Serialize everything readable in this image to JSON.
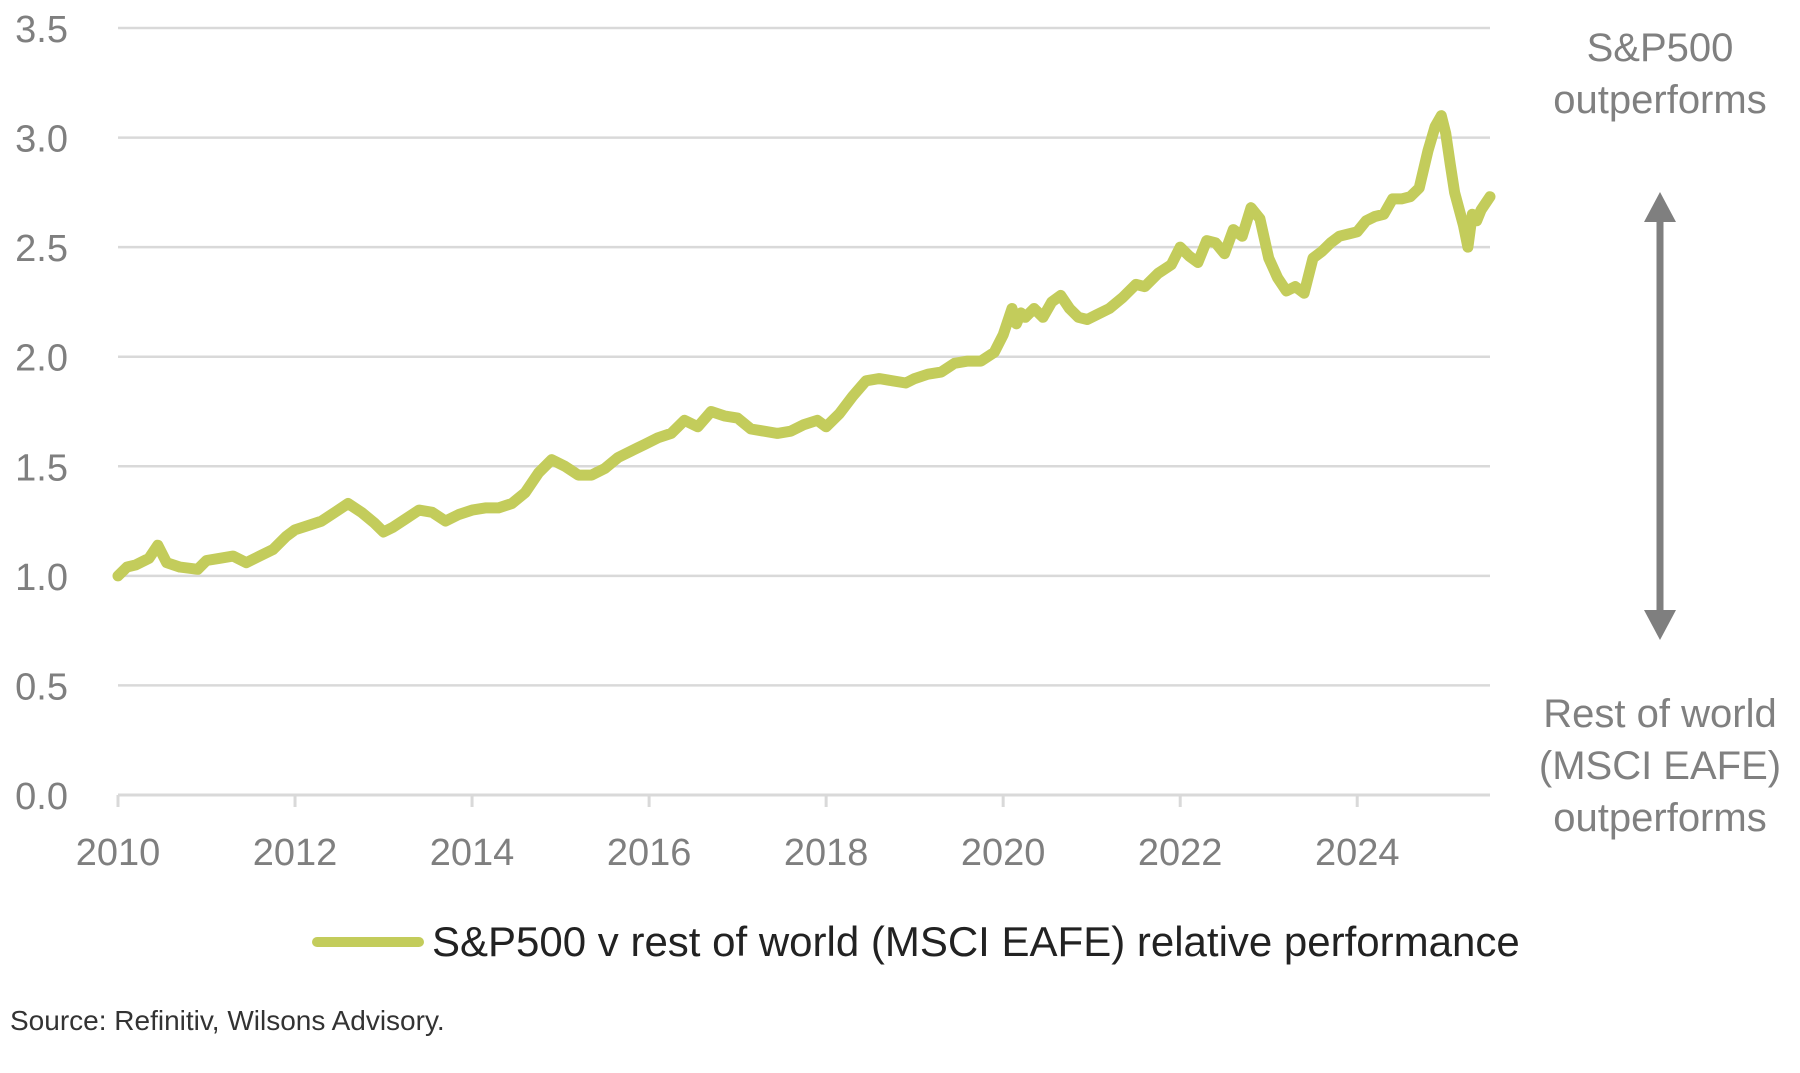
{
  "chart_data": {
    "type": "line",
    "title": "",
    "xlabel": "",
    "ylabel": "",
    "x_ticks": [
      "2010",
      "2012",
      "2014",
      "2016",
      "2018",
      "2020",
      "2022",
      "2024"
    ],
    "y_ticks": [
      "0.0",
      "0.5",
      "1.0",
      "1.5",
      "2.0",
      "2.5",
      "3.0",
      "3.5"
    ],
    "xlim": [
      2010,
      2025.5
    ],
    "ylim": [
      0,
      3.5
    ],
    "grid": "horizontal",
    "legend_position": "bottom",
    "series": [
      {
        "name": "S&P500 v rest of world (MSCI EAFE) relative performance",
        "color": "#c3cc5b",
        "x": [
          2010.0,
          2010.1,
          2010.2,
          2010.35,
          2010.45,
          2010.55,
          2010.7,
          2010.9,
          2011.0,
          2011.15,
          2011.3,
          2011.45,
          2011.6,
          2011.75,
          2011.9,
          2012.0,
          2012.15,
          2012.3,
          2012.45,
          2012.6,
          2012.75,
          2012.9,
          2013.0,
          2013.1,
          2013.25,
          2013.4,
          2013.55,
          2013.7,
          2013.85,
          2014.0,
          2014.15,
          2014.3,
          2014.45,
          2014.6,
          2014.75,
          2014.9,
          2015.05,
          2015.2,
          2015.35,
          2015.5,
          2015.65,
          2015.8,
          2015.95,
          2016.1,
          2016.25,
          2016.4,
          2016.55,
          2016.7,
          2016.85,
          2017.0,
          2017.15,
          2017.3,
          2017.45,
          2017.6,
          2017.75,
          2017.9,
          2018.0,
          2018.15,
          2018.3,
          2018.45,
          2018.6,
          2018.75,
          2018.9,
          2019.0,
          2019.15,
          2019.3,
          2019.45,
          2019.6,
          2019.75,
          2019.9,
          2020.0,
          2020.1,
          2020.15,
          2020.2,
          2020.25,
          2020.35,
          2020.45,
          2020.55,
          2020.65,
          2020.75,
          2020.85,
          2020.95,
          2021.05,
          2021.2,
          2021.35,
          2021.5,
          2021.6,
          2021.75,
          2021.9,
          2022.0,
          2022.1,
          2022.2,
          2022.3,
          2022.4,
          2022.5,
          2022.6,
          2022.7,
          2022.8,
          2022.9,
          2023.0,
          2023.1,
          2023.2,
          2023.3,
          2023.4,
          2023.5,
          2023.6,
          2023.7,
          2023.8,
          2023.9,
          2024.0,
          2024.1,
          2024.2,
          2024.3,
          2024.4,
          2024.5,
          2024.6,
          2024.7,
          2024.8,
          2024.88,
          2024.95,
          2025.0,
          2025.05,
          2025.1,
          2025.2,
          2025.25,
          2025.3,
          2025.35,
          2025.4,
          2025.5
        ],
        "values": [
          1.0,
          1.04,
          1.05,
          1.08,
          1.14,
          1.06,
          1.04,
          1.03,
          1.07,
          1.08,
          1.09,
          1.06,
          1.09,
          1.12,
          1.18,
          1.21,
          1.23,
          1.25,
          1.29,
          1.33,
          1.29,
          1.24,
          1.2,
          1.22,
          1.26,
          1.3,
          1.29,
          1.25,
          1.28,
          1.3,
          1.31,
          1.31,
          1.33,
          1.38,
          1.47,
          1.53,
          1.5,
          1.46,
          1.46,
          1.49,
          1.54,
          1.57,
          1.6,
          1.63,
          1.65,
          1.71,
          1.68,
          1.75,
          1.73,
          1.72,
          1.67,
          1.66,
          1.65,
          1.66,
          1.69,
          1.71,
          1.68,
          1.74,
          1.82,
          1.89,
          1.9,
          1.89,
          1.88,
          1.9,
          1.92,
          1.93,
          1.97,
          1.98,
          1.98,
          2.02,
          2.1,
          2.22,
          2.15,
          2.2,
          2.18,
          2.22,
          2.18,
          2.25,
          2.28,
          2.22,
          2.18,
          2.17,
          2.19,
          2.22,
          2.27,
          2.33,
          2.32,
          2.38,
          2.42,
          2.5,
          2.46,
          2.43,
          2.53,
          2.52,
          2.47,
          2.58,
          2.55,
          2.68,
          2.63,
          2.45,
          2.36,
          2.3,
          2.32,
          2.29,
          2.45,
          2.48,
          2.52,
          2.55,
          2.56,
          2.57,
          2.62,
          2.64,
          2.65,
          2.72,
          2.72,
          2.73,
          2.77,
          2.94,
          3.05,
          3.1,
          3.02,
          2.88,
          2.75,
          2.6,
          2.5,
          2.65,
          2.62,
          2.67,
          2.73
        ]
      }
    ]
  },
  "annotations": {
    "top": [
      "S&P500",
      "outperforms"
    ],
    "bottom": [
      "Rest of world",
      "(MSCI EAFE)",
      "outperforms"
    ]
  },
  "legend": {
    "label": "S&P500 v rest of world (MSCI EAFE) relative performance"
  },
  "source": "Source: Refinitiv, Wilsons Advisory.",
  "colors": {
    "line": "#c3cc5b",
    "grid": "#d9d9d9",
    "axis_text": "#7f7f7f",
    "arrow": "#7f7f7f"
  }
}
